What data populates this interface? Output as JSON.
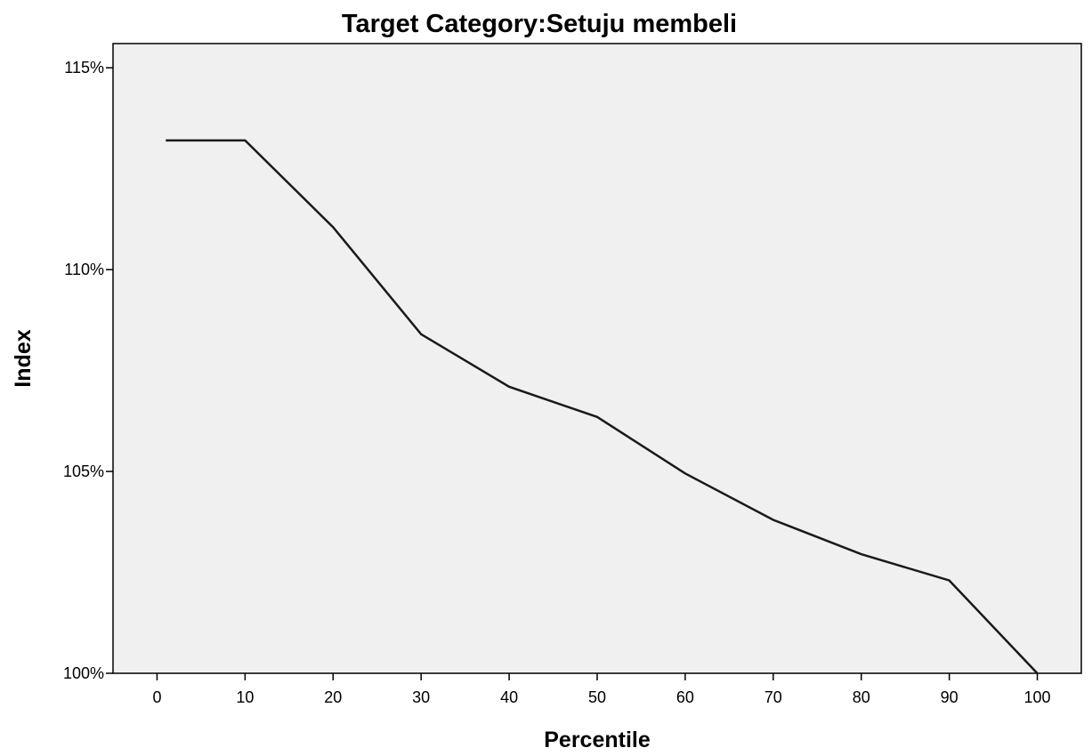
{
  "chart_data": {
    "type": "line",
    "title": "Target Category:Setuju membeli",
    "xlabel": "Percentile",
    "ylabel": "Index",
    "x_ticks": [
      "0",
      "10",
      "20",
      "30",
      "40",
      "50",
      "60",
      "70",
      "80",
      "90",
      "100"
    ],
    "y_ticks": [
      "100%",
      "105%",
      "110%",
      "115%"
    ],
    "xlim": [
      -5,
      105
    ],
    "ylim": [
      100,
      115.6
    ],
    "grid": false,
    "legend": "none",
    "plot_background": "#f0f0f0",
    "line_color": "#1a1a1a",
    "series": [
      {
        "x": [
          1,
          10,
          20,
          30,
          40,
          50,
          60,
          70,
          80,
          90,
          100
        ],
        "y": [
          113.2,
          113.2,
          111.05,
          108.4,
          107.1,
          106.35,
          104.95,
          103.8,
          102.95,
          102.3,
          100.0
        ]
      }
    ]
  }
}
